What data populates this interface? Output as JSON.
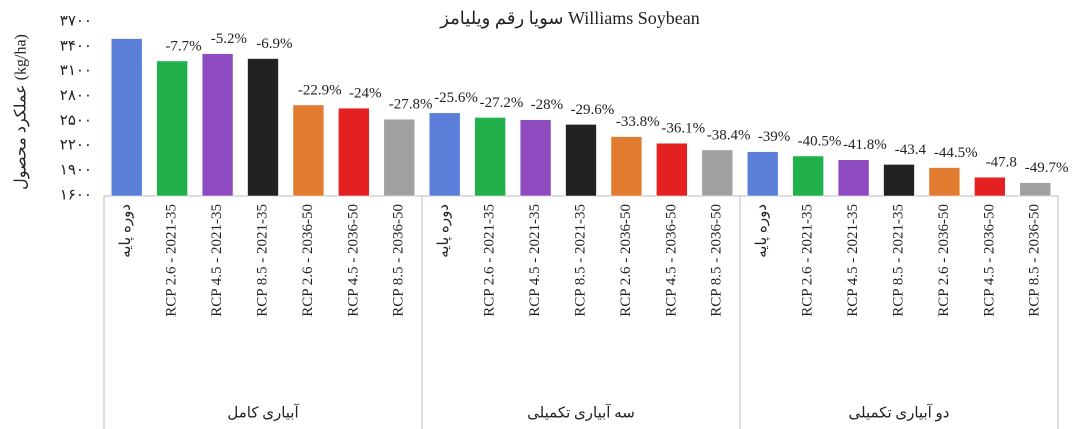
{
  "chart_data": {
    "type": "bar",
    "title": "سویا رقم ویلیامز Williams Soybean",
    "y_label": "عملکرد محصول (kg/ha)",
    "categories": [
      "دوره پایه",
      "RCP 2.6 - 2021-35",
      "RCP 4.5 - 2021-35",
      "RCP 8.5 - 2021-35",
      "RCP 2.6 - 2036-50",
      "RCP 4.5 - 2036-50",
      "RCP 8.5 - 2036-50",
      "دوره پایه",
      "RCP 2.6 - 2021-35",
      "RCP 4.5 - 2021-35",
      "RCP 8.5 - 2021-35",
      "RCP 2.6 - 2036-50",
      "RCP 4.5 - 2036-50",
      "RCP 8.5 - 2036-50",
      "دوره پایه",
      "RCP 2.6 - 2021-35",
      "RCP 4.5 - 2021-35",
      "RCP 8.5 - 2021-35",
      "RCP 2.6 - 2036-50",
      "RCP 4.5 - 2036-50",
      "RCP 8.5 - 2036-50"
    ],
    "groups": [
      "آبیاری کامل",
      "سه آبیاری تکمیلی",
      "دو آبیاری تکمیلی"
    ],
    "values": [
      3500,
      3230,
      3318,
      3259,
      2699,
      2660,
      2527,
      2604,
      2548,
      2520,
      2464,
      2317,
      2237,
      2156,
      2135,
      2083,
      2037,
      1981,
      1943,
      1827,
      1761
    ],
    "annotations": [
      null,
      "-7.7%",
      "-5.2%",
      "-6.9%",
      "-22.9%",
      "-24%",
      "-27.8%",
      "-25.6%",
      "-27.2%",
      "-28%",
      "-29.6%",
      "-33.8%",
      "-36.1%",
      "-38.4%",
      "-39%",
      "-40.5%",
      "-41.8%",
      "-43.4",
      "-44.5%",
      "-47.8",
      "-49.7%"
    ],
    "colors": [
      "#5b7fd9",
      "#22b04b",
      "#8e4bc0",
      "#222222",
      "#e07b30",
      "#e52020",
      "#a0a0a0"
    ],
    "ylim": [
      1600,
      3700
    ],
    "yticks": [
      {
        "value": 1600,
        "label": "۱۶۰۰"
      },
      {
        "value": 1900,
        "label": "۱۹۰۰"
      },
      {
        "value": 2200,
        "label": "۲۲۰۰"
      },
      {
        "value": 2500,
        "label": "۲۵۰۰"
      },
      {
        "value": 2800,
        "label": "۲۸۰۰"
      },
      {
        "value": 3100,
        "label": "۳۱۰۰"
      },
      {
        "value": 3400,
        "label": "۳۴۰۰"
      },
      {
        "value": 3700,
        "label": "۳۷۰۰"
      }
    ],
    "grid": false
  }
}
